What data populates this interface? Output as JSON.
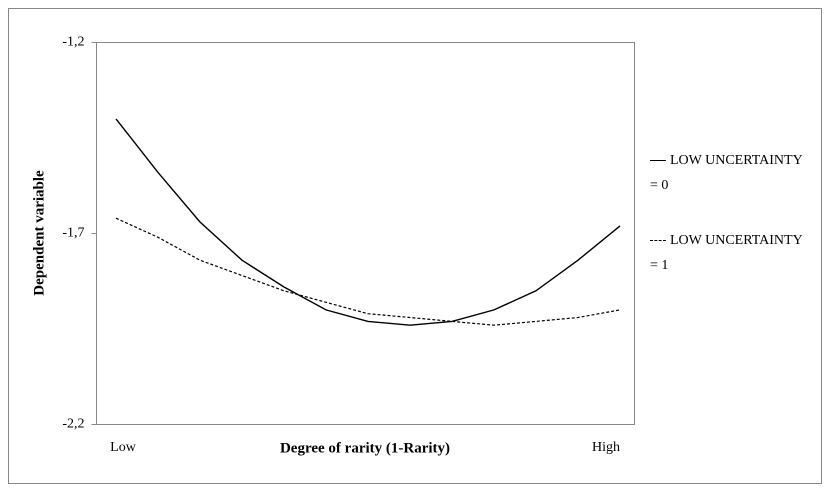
{
  "chart_data": {
    "type": "line",
    "xlabel": "Degree of rarity (1-Rarity)",
    "ylabel": "Dependent variable",
    "categories": [
      "Low",
      null,
      null,
      null,
      null,
      null,
      null,
      null,
      null,
      null,
      null,
      null,
      "High"
    ],
    "series": [
      {
        "name": "LOW UNCERTAINTY = 0",
        "color": "#000000",
        "linestyle": "solid",
        "values": [
          -1.4,
          -1.54,
          -1.67,
          -1.77,
          -1.84,
          -1.9,
          -1.93,
          -1.94,
          -1.93,
          -1.9,
          -1.85,
          -1.77,
          -1.68
        ]
      },
      {
        "name": "LOW UNCERTAINTY = 1",
        "color": "#000000",
        "linestyle": "dashed",
        "values": [
          -1.66,
          -1.71,
          -1.77,
          -1.81,
          -1.85,
          -1.88,
          -1.91,
          -1.92,
          -1.93,
          -1.94,
          -1.93,
          -1.92,
          -1.9
        ]
      }
    ],
    "ylim": [
      -2.2,
      -1.2
    ],
    "yticks": [
      {
        "value": -2.2,
        "label": "-2,2"
      },
      {
        "value": -1.7,
        "label": "-1,7"
      },
      {
        "value": -1.2,
        "label": "-1,2"
      }
    ],
    "grid": false
  }
}
